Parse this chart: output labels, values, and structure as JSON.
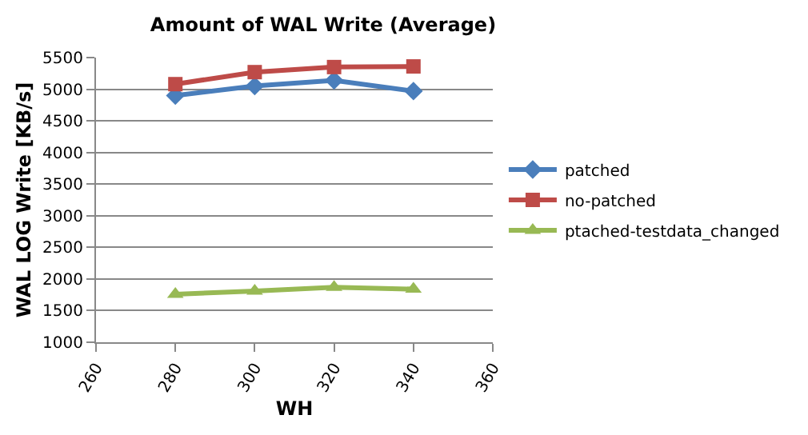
{
  "chart_data": {
    "type": "line",
    "title": "Amount of WAL Write (Average)",
    "xlabel": "WH",
    "ylabel": "WAL LOG Write [KB/s]",
    "x": [
      280,
      300,
      320,
      340
    ],
    "series": [
      {
        "name": "patched",
        "color": "#4a7ebb",
        "marker": "diamond",
        "values": [
          4900,
          5050,
          5140,
          4970
        ]
      },
      {
        "name": "no-patched",
        "color": "#be4b48",
        "marker": "square",
        "values": [
          5080,
          5270,
          5350,
          5360
        ]
      },
      {
        "name": "ptached-testdata_changed",
        "color": "#98b954",
        "marker": "triangle",
        "values": [
          1760,
          1810,
          1870,
          1840
        ]
      }
    ],
    "xlim": [
      260,
      360
    ],
    "xticks": [
      260,
      280,
      300,
      320,
      340,
      360
    ],
    "ylim": [
      1000,
      5500
    ],
    "yticks": [
      1000,
      1500,
      2000,
      2500,
      3000,
      3500,
      4000,
      4500,
      5000,
      5500
    ],
    "grid": "y",
    "legend": "right"
  }
}
